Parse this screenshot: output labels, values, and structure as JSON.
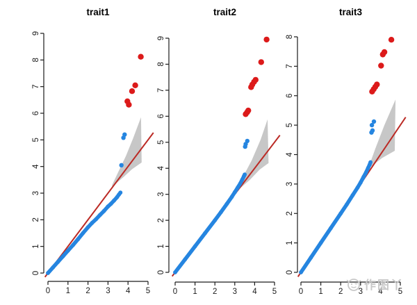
{
  "watermark": {
    "text": "作图丫",
    "icon": "smiley-face-icon",
    "color": "#c6c6c6"
  },
  "colors": {
    "observed_blue": "#2585e0",
    "significant_red": "#dc1a1a",
    "identity_line_red": "#bb2a25",
    "confidence_band_gray": "#c7c7c7",
    "axis_black": "#1a1a1a",
    "background": "#ffffff"
  },
  "chart_data": [
    {
      "type": "scatter",
      "subtype": "qq-plot",
      "title": "trait1",
      "xlabel": "",
      "ylabel": "",
      "xlim": [
        0,
        5
      ],
      "ylim": [
        0,
        9
      ],
      "xticks": [
        0,
        1,
        2,
        3,
        4,
        5
      ],
      "yticks": [
        0,
        1,
        2,
        3,
        4,
        5,
        6,
        7,
        8,
        9
      ],
      "grid": false,
      "legend": "none",
      "identity_line": [
        [
          -0.15,
          -0.15
        ],
        [
          5.27,
          5.27
        ]
      ],
      "confidence_band": [
        [
          3.2,
          3.3
        ],
        [
          3.55,
          3.85
        ],
        [
          3.9,
          4.4
        ],
        [
          4.25,
          5.05
        ],
        [
          4.65,
          5.85
        ],
        [
          4.68,
          4.15
        ],
        [
          4.2,
          3.9
        ],
        [
          3.8,
          3.62
        ],
        [
          3.45,
          3.4
        ],
        [
          3.2,
          3.24
        ]
      ],
      "series": [
        {
          "name": "observed",
          "color_key": "observed_blue",
          "points": [
            [
              0,
              0
            ],
            [
              0.25,
              0.21
            ],
            [
              0.5,
              0.42
            ],
            [
              0.75,
              0.63
            ],
            [
              1,
              0.84
            ],
            [
              1.25,
              1.05
            ],
            [
              1.5,
              1.27
            ],
            [
              1.75,
              1.5
            ],
            [
              2,
              1.72
            ],
            [
              2.2,
              1.88
            ],
            [
              2.4,
              2.02
            ],
            [
              2.6,
              2.18
            ],
            [
              2.8,
              2.33
            ],
            [
              3,
              2.5
            ],
            [
              3.15,
              2.6
            ],
            [
              3.3,
              2.72
            ],
            [
              3.45,
              2.85
            ],
            [
              3.55,
              2.95
            ],
            [
              3.62,
              3.02
            ]
          ]
        },
        {
          "name": "observed-outliers",
          "color_key": "observed_blue",
          "points": [
            [
              3.67,
              4.05
            ],
            [
              3.77,
              5.08
            ],
            [
              3.83,
              5.2
            ]
          ]
        },
        {
          "name": "significant",
          "color_key": "significant_red",
          "points": [
            [
              3.97,
              6.45
            ],
            [
              4.04,
              6.32
            ],
            [
              4.2,
              6.83
            ],
            [
              4.36,
              7.05
            ],
            [
              4.64,
              8.12
            ]
          ]
        }
      ]
    },
    {
      "type": "scatter",
      "subtype": "qq-plot",
      "title": "trait2",
      "xlabel": "",
      "ylabel": "",
      "xlim": [
        0,
        5
      ],
      "ylim": [
        0,
        9
      ],
      "xticks": [
        0,
        1,
        2,
        3,
        4,
        5
      ],
      "yticks": [
        0,
        1,
        2,
        3,
        4,
        5,
        6,
        7,
        8,
        9
      ],
      "grid": false,
      "legend": "none",
      "identity_line": [
        [
          -0.15,
          -0.15
        ],
        [
          5.27,
          5.27
        ]
      ],
      "confidence_band": [
        [
          2.95,
          3.1
        ],
        [
          3.4,
          3.65
        ],
        [
          3.85,
          4.3
        ],
        [
          4.3,
          5.1
        ],
        [
          4.65,
          5.88
        ],
        [
          4.7,
          4.2
        ],
        [
          4.25,
          3.95
        ],
        [
          3.75,
          3.55
        ],
        [
          3.3,
          3.25
        ],
        [
          2.95,
          3.02
        ]
      ],
      "series": [
        {
          "name": "observed",
          "color_key": "observed_blue",
          "points": [
            [
              0,
              0
            ],
            [
              0.5,
              0.5
            ],
            [
              1,
              1
            ],
            [
              1.5,
              1.5
            ],
            [
              2,
              2
            ],
            [
              2.3,
              2.31
            ],
            [
              2.6,
              2.63
            ],
            [
              2.85,
              2.9
            ],
            [
              3,
              3.08
            ],
            [
              3.15,
              3.26
            ],
            [
              3.28,
              3.42
            ],
            [
              3.38,
              3.57
            ],
            [
              3.46,
              3.7
            ],
            [
              3.5,
              3.76
            ]
          ]
        },
        {
          "name": "observed-outliers",
          "color_key": "observed_blue",
          "points": [
            [
              3.52,
              4.83
            ],
            [
              3.55,
              4.93
            ],
            [
              3.63,
              5.05
            ]
          ]
        },
        {
          "name": "significant",
          "color_key": "significant_red",
          "points": [
            [
              3.55,
              6.08
            ],
            [
              3.62,
              6.15
            ],
            [
              3.68,
              6.22
            ],
            [
              3.82,
              7.12
            ],
            [
              3.88,
              7.22
            ],
            [
              3.97,
              7.32
            ],
            [
              4.05,
              7.4
            ],
            [
              4.33,
              8.08
            ],
            [
              4.6,
              8.95
            ]
          ]
        }
      ]
    },
    {
      "type": "scatter",
      "subtype": "qq-plot",
      "title": "trait3",
      "xlabel": "",
      "ylabel": "",
      "xlim": [
        0,
        5
      ],
      "ylim": [
        0,
        8
      ],
      "xticks": [
        0,
        1,
        2,
        3,
        4,
        5
      ],
      "yticks": [
        0,
        1,
        2,
        3,
        4,
        5,
        6,
        7,
        8
      ],
      "grid": false,
      "legend": "none",
      "identity_line": [
        [
          -0.15,
          -0.15
        ],
        [
          5.27,
          5.27
        ]
      ],
      "confidence_band": [
        [
          3.1,
          3.3
        ],
        [
          3.5,
          3.75
        ],
        [
          3.75,
          4.22
        ],
        [
          4.2,
          5.0
        ],
        [
          4.76,
          5.87
        ],
        [
          4.72,
          4.13
        ],
        [
          4.09,
          3.89
        ],
        [
          3.5,
          3.58
        ],
        [
          3.1,
          3.28
        ]
      ],
      "series": [
        {
          "name": "observed",
          "color_key": "observed_blue",
          "points": [
            [
              0,
              0
            ],
            [
              0.5,
              0.5
            ],
            [
              1,
              1
            ],
            [
              1.5,
              1.5
            ],
            [
              2,
              2
            ],
            [
              2.3,
              2.3
            ],
            [
              2.6,
              2.62
            ],
            [
              2.85,
              2.88
            ],
            [
              3,
              3.05
            ],
            [
              3.15,
              3.24
            ],
            [
              3.28,
              3.4
            ],
            [
              3.38,
              3.55
            ],
            [
              3.45,
              3.65
            ],
            [
              3.5,
              3.74
            ]
          ]
        },
        {
          "name": "observed-outliers",
          "color_key": "observed_blue",
          "points": [
            [
              3.55,
              4.75
            ],
            [
              3.6,
              4.82
            ],
            [
              3.57,
              5.0
            ],
            [
              3.67,
              5.12
            ]
          ]
        },
        {
          "name": "significant",
          "color_key": "significant_red",
          "points": [
            [
              3.58,
              6.14
            ],
            [
              3.66,
              6.22
            ],
            [
              3.74,
              6.3
            ],
            [
              3.82,
              6.38
            ],
            [
              4.03,
              7.02
            ],
            [
              4.12,
              7.4
            ],
            [
              4.2,
              7.48
            ],
            [
              4.55,
              7.9
            ]
          ]
        }
      ]
    }
  ]
}
